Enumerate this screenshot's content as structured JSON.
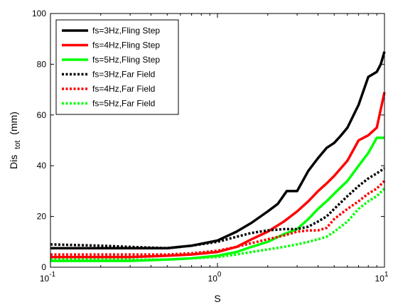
{
  "chart_data": {
    "type": "line",
    "xlabel": "S",
    "ylabel_main": "Dis",
    "ylabel_sub": "tot",
    "ylabel_unit": "(mm)",
    "xscale": "log",
    "xlim": [
      0.1,
      10
    ],
    "ylim": [
      0,
      100
    ],
    "x_ticks": [
      {
        "value": 0.1,
        "base": "10",
        "exp": "-1"
      },
      {
        "value": 1,
        "base": "10",
        "exp": "0"
      },
      {
        "value": 10,
        "base": "10",
        "exp": "1"
      }
    ],
    "y_ticks": [
      {
        "value": 0,
        "label": "0"
      },
      {
        "value": 20,
        "label": "20"
      },
      {
        "value": 40,
        "label": "40"
      },
      {
        "value": 60,
        "label": "60"
      },
      {
        "value": 80,
        "label": "80"
      },
      {
        "value": 100,
        "label": "100"
      }
    ],
    "grid": false,
    "legend_position": "top-left",
    "series": [
      {
        "name": "fs=3Hz,Fling Step",
        "color": "#000000",
        "dash": "solid",
        "x": [
          0.1,
          0.2,
          0.3,
          0.5,
          0.7,
          1.0,
          1.3,
          1.6,
          2.0,
          2.3,
          2.6,
          3.0,
          3.5,
          4.0,
          4.5,
          5.0,
          5.5,
          6.0,
          7.0,
          8.0,
          9.0,
          9.5,
          10.0
        ],
        "y": [
          7.5,
          7.5,
          7.5,
          7.5,
          8.5,
          10.5,
          14,
          17.5,
          22,
          25,
          30,
          30,
          38,
          43,
          47,
          49,
          52,
          55,
          64,
          75,
          77,
          80,
          85
        ]
      },
      {
        "name": "fs=4Hz,Fling Step",
        "color": "#ff0000",
        "dash": "solid",
        "x": [
          0.1,
          0.2,
          0.3,
          0.5,
          0.7,
          1.0,
          1.3,
          1.6,
          2.0,
          2.5,
          3.0,
          3.5,
          4.0,
          4.5,
          5.0,
          6.0,
          7.0,
          8.0,
          9.0,
          10.0
        ],
        "y": [
          4,
          4,
          4,
          4.5,
          5,
          6,
          8,
          11,
          14,
          18,
          22,
          26,
          30,
          33,
          36,
          42,
          50,
          52,
          55,
          69
        ]
      },
      {
        "name": "fs=5Hz,Fling Step",
        "color": "#00ff00",
        "dash": "solid",
        "x": [
          0.1,
          0.2,
          0.3,
          0.5,
          0.7,
          1.0,
          1.3,
          1.6,
          2.0,
          2.5,
          3.0,
          3.5,
          4.0,
          4.5,
          5.0,
          6.0,
          7.0,
          8.0,
          9.0,
          10.0
        ],
        "y": [
          2.5,
          2.5,
          2.5,
          3,
          3.5,
          4.5,
          6,
          8,
          10,
          13,
          15,
          19,
          23,
          26,
          29,
          34,
          40,
          45,
          51,
          51
        ]
      },
      {
        "name": "fs=3Hz,Far Field",
        "color": "#000000",
        "dash": "dotted",
        "x": [
          0.1,
          0.2,
          0.3,
          0.5,
          0.7,
          1.0,
          1.3,
          1.6,
          2.0,
          2.5,
          3.0,
          3.5,
          4.0,
          4.5,
          5.0,
          6.0,
          7.0,
          8.0,
          9.0,
          10.0
        ],
        "y": [
          9,
          8.5,
          8,
          7.5,
          8.5,
          10,
          12,
          13.5,
          14.5,
          15,
          15,
          16,
          18,
          20,
          23,
          28,
          32,
          35,
          37,
          39
        ]
      },
      {
        "name": "fs=4Hz,Far Field",
        "color": "#ff0000",
        "dash": "dotted",
        "x": [
          0.1,
          0.2,
          0.3,
          0.5,
          0.7,
          1.0,
          1.3,
          1.6,
          2.0,
          2.5,
          3.0,
          3.5,
          4.0,
          4.5,
          5.0,
          6.0,
          7.0,
          8.0,
          9.0,
          10.0
        ],
        "y": [
          5,
          5,
          5,
          5,
          5.5,
          6.5,
          8,
          9.5,
          11,
          12.5,
          14,
          14.5,
          14.5,
          15.5,
          19,
          23,
          26,
          29,
          31,
          34
        ]
      },
      {
        "name": "fs=5Hz,Far Field",
        "color": "#00ff00",
        "dash": "dotted",
        "x": [
          0.1,
          0.2,
          0.3,
          0.5,
          0.7,
          1.0,
          1.3,
          1.6,
          2.0,
          2.5,
          3.0,
          3.5,
          4.0,
          4.5,
          5.0,
          6.0,
          7.0,
          8.0,
          9.0,
          10.0
        ],
        "y": [
          3,
          3,
          3,
          3,
          3.5,
          4,
          5,
          6,
          7,
          8,
          9,
          10,
          11,
          12,
          14,
          18,
          23,
          26,
          28,
          31
        ]
      }
    ]
  }
}
